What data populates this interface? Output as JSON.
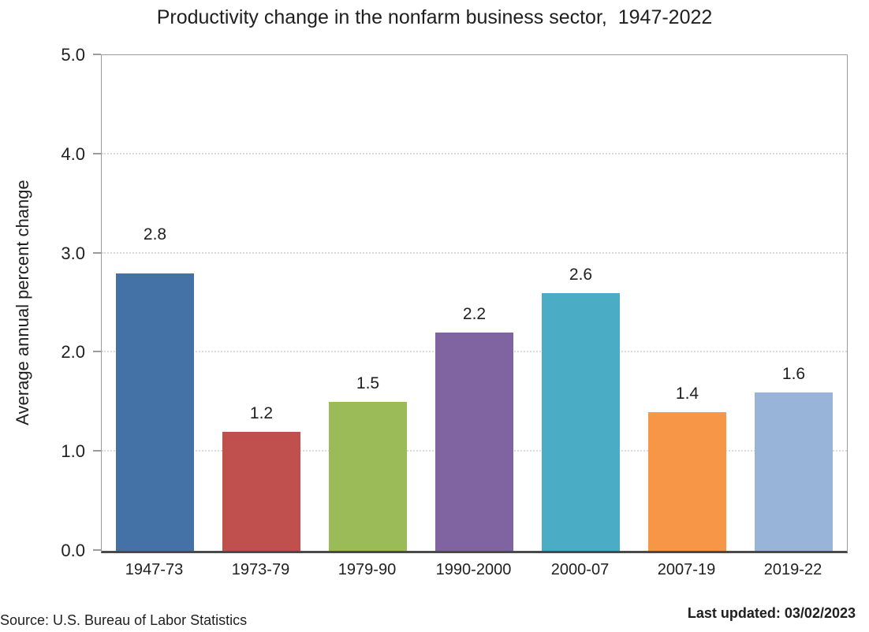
{
  "title": "Productivity change in the nonfarm business sector,  1947-2022",
  "y_axis_title": "Average annual percent change",
  "source": "Source: U.S. Bureau of Labor Statistics",
  "last_updated": "Last updated: 03/02/2023",
  "chart_data": {
    "type": "bar",
    "title": "Productivity change in the nonfarm business sector,  1947-2022",
    "categories": [
      "1947-73",
      "1973-79",
      "1979-90",
      "1990-2000",
      "2000-07",
      "2007-19",
      "2019-22"
    ],
    "values": [
      2.8,
      1.2,
      1.5,
      2.2,
      2.6,
      1.4,
      1.6
    ],
    "value_labels": [
      "2.8",
      "1.2",
      "1.5",
      "2.2",
      "2.6",
      "1.4",
      "1.6"
    ],
    "bar_colors": [
      "#4472A6",
      "#C0504D",
      "#9BBB59",
      "#8064A2",
      "#4BACC6",
      "#F79646",
      "#99B4D9"
    ],
    "xlabel": "",
    "ylabel": "Average annual percent change",
    "ylim": [
      0,
      5
    ],
    "ytick_step": 1,
    "ytick_labels": [
      "0.0",
      "1.0",
      "2.0",
      "3.0",
      "4.0",
      "5.0"
    ],
    "grid": "horizontal-dotted",
    "legend": "none",
    "text_color": "#1f1f1f",
    "gridline_color": "#d9d9d9",
    "axis_color": "#9b9b9b",
    "baseline_color": "#4a4a4a"
  }
}
